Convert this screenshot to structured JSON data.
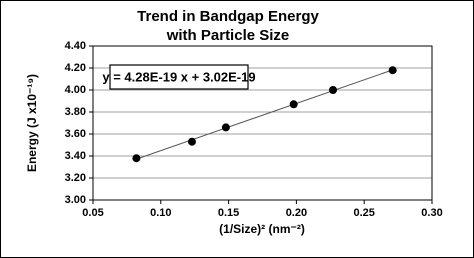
{
  "chart_data": {
    "type": "scatter",
    "title": [
      "Trend in Bandgap Energy",
      "with Particle Size"
    ],
    "x_label": "(1/Size)² (nm⁻²)",
    "y_label": "Energy (J x10⁻¹⁹)",
    "annotation": "y = 4.28E-19 x + 3.02E-19",
    "x": [
      0.082,
      0.123,
      0.148,
      0.198,
      0.227,
      0.271
    ],
    "values": [
      3.38,
      3.53,
      3.66,
      3.87,
      4.0,
      4.18
    ],
    "color": "#000000",
    "trendline": true,
    "grid": true,
    "xlim": [
      0.05,
      0.3
    ],
    "xticks": [
      {
        "value": 0.05,
        "label": "0.05"
      },
      {
        "value": 0.1,
        "label": "0.10"
      },
      {
        "value": 0.15,
        "label": "0.15"
      },
      {
        "value": 0.2,
        "label": "0.20"
      },
      {
        "value": 0.25,
        "label": "0.25"
      },
      {
        "value": 0.3,
        "label": "0.30"
      }
    ],
    "ylim": [
      3.0,
      4.4
    ],
    "yticks": [
      {
        "value": 3.0,
        "label": "3.00"
      },
      {
        "value": 3.2,
        "label": "3.20"
      },
      {
        "value": 3.4,
        "label": "3.40"
      },
      {
        "value": 3.6,
        "label": "3.60"
      },
      {
        "value": 3.8,
        "label": "3.80"
      },
      {
        "value": 4.0,
        "label": "4.00"
      },
      {
        "value": 4.2,
        "label": "4.20"
      },
      {
        "value": 4.4,
        "label": "4.40"
      }
    ]
  }
}
